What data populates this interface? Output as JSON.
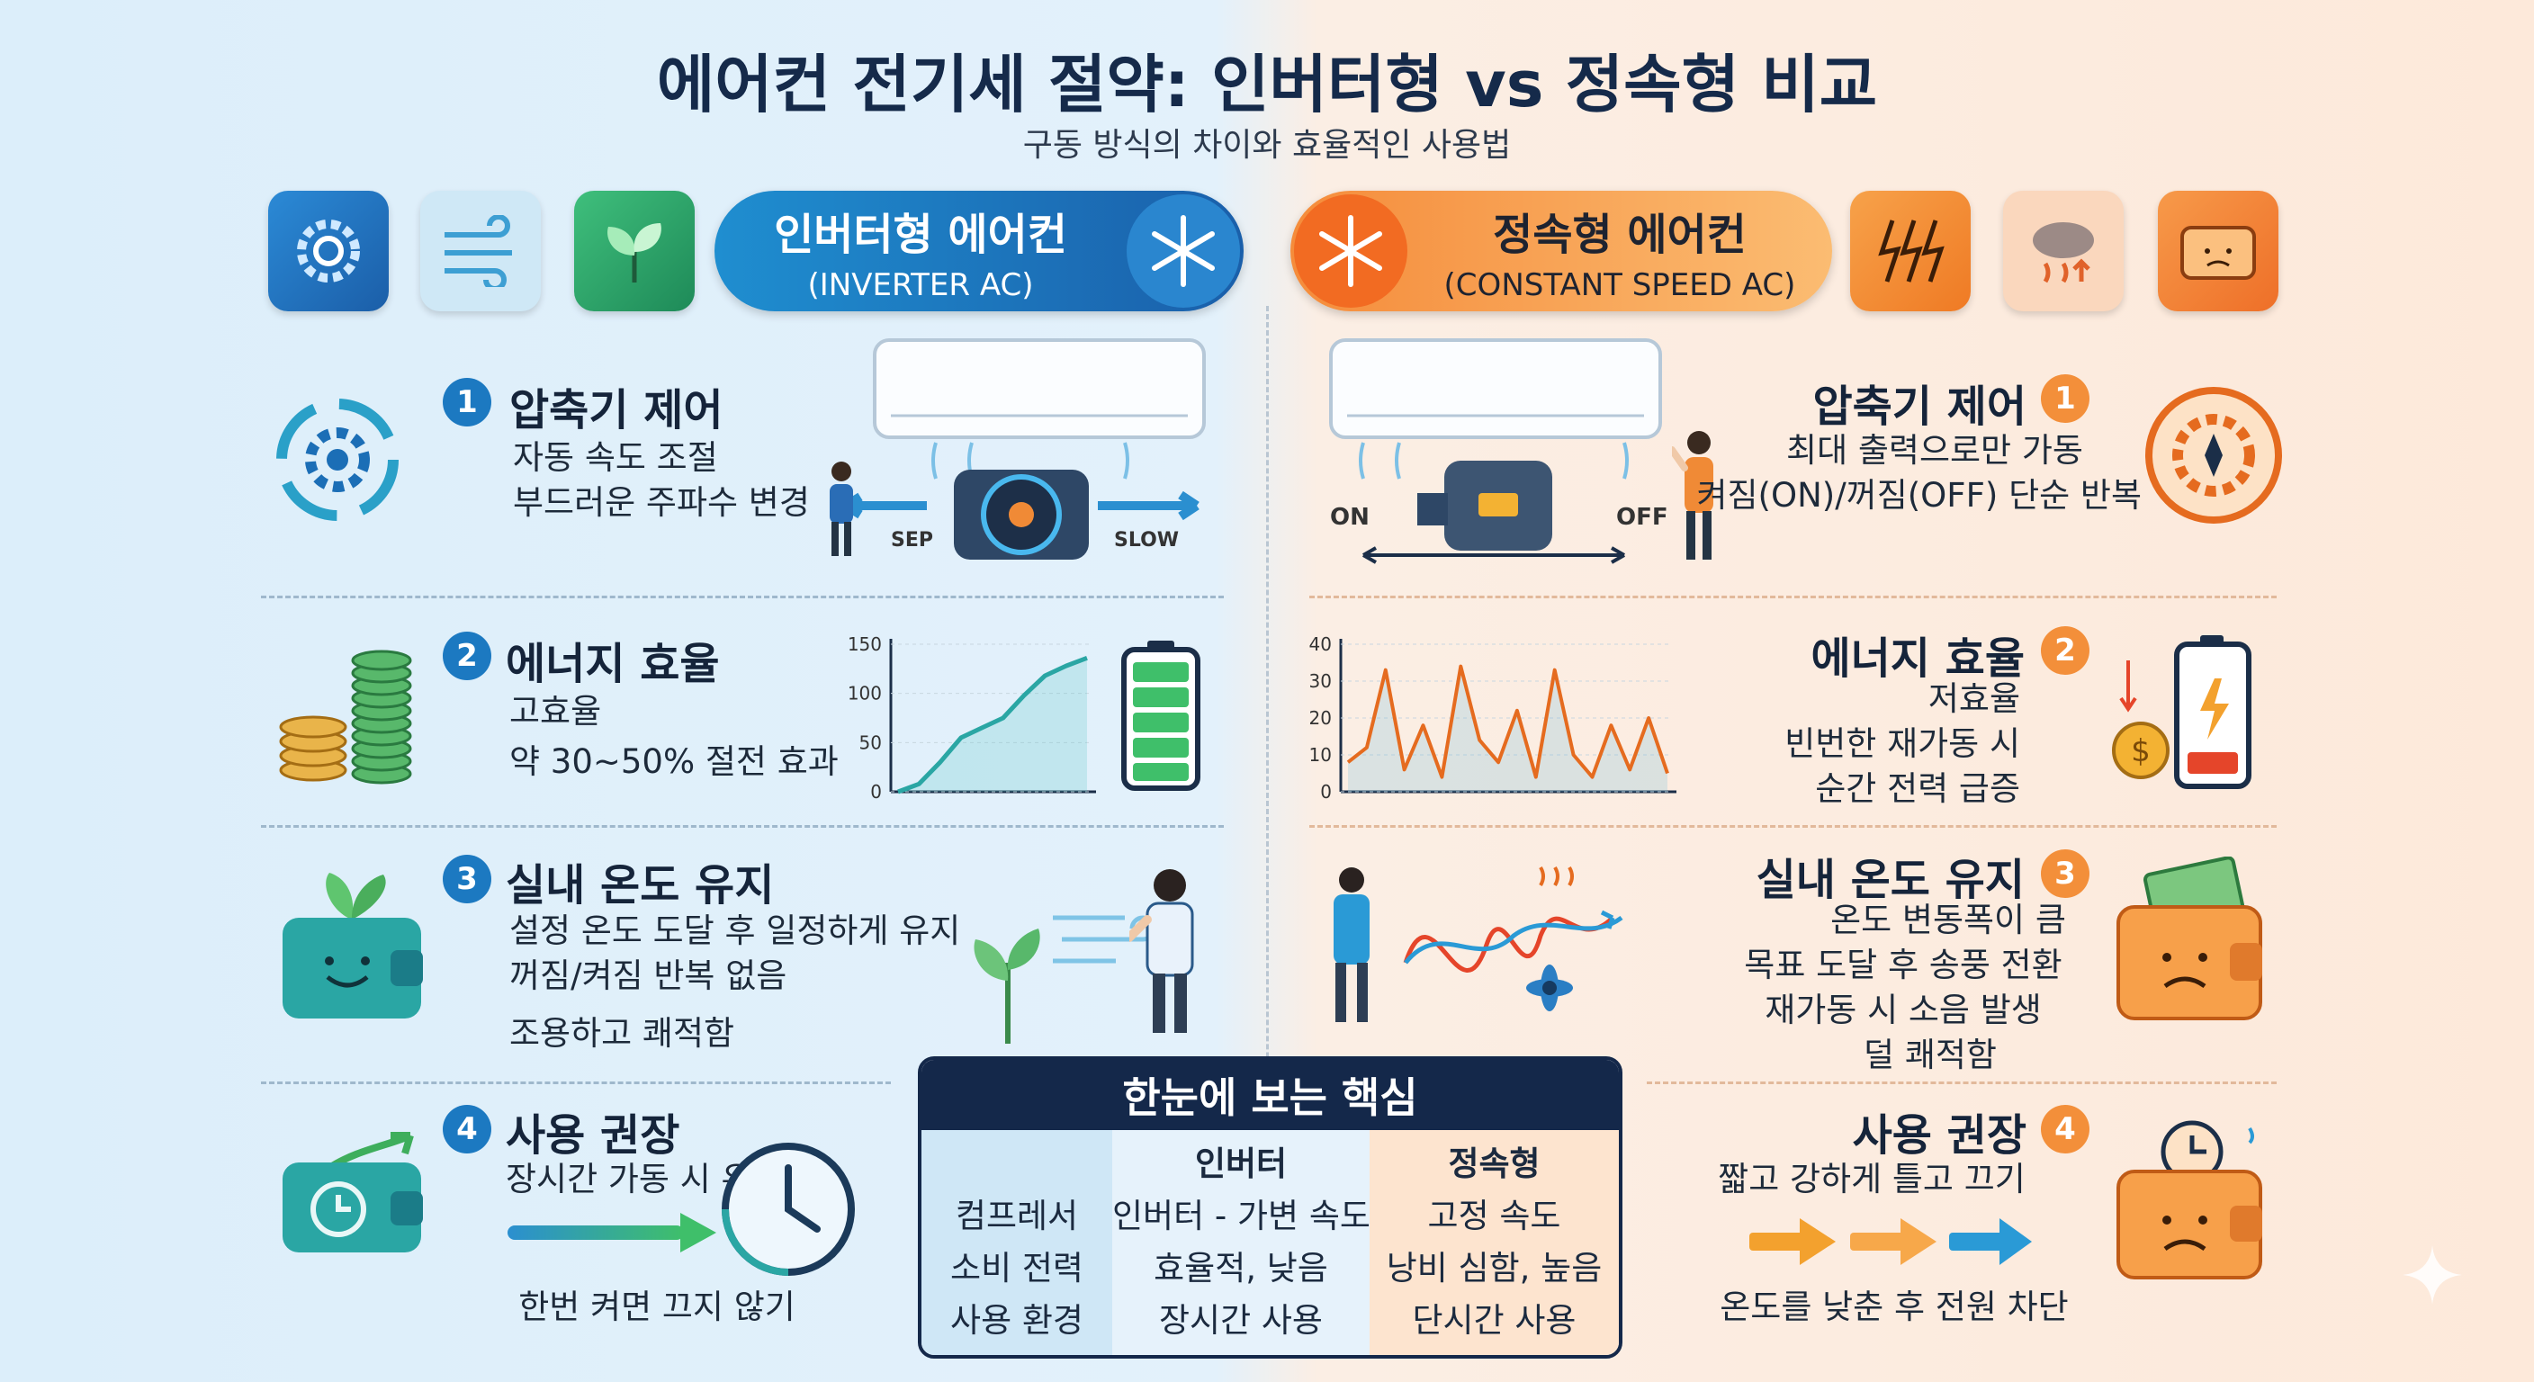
{
  "title": "에어컨 전기세 절약: 인버터형 vs 정속형 비교",
  "subtitle": "구동 방식의 차이와 효율적인 사용법",
  "left": {
    "header_title": "인버터형 에어컨",
    "header_sub": "(INVERTER AC)",
    "sections": [
      {
        "num": "1",
        "title": "압축기 제어",
        "lines": [
          "자동 속도 조절",
          "부드러운 주파수 변경"
        ]
      },
      {
        "num": "2",
        "title": "에너지 효율",
        "lines": [
          "고효율",
          "약 30~50% 절전 효과"
        ]
      },
      {
        "num": "3",
        "title": "실내 온도 유지",
        "lines": [
          "설정 온도 도달 후 일정하게 유지",
          "꺼짐/켜짐 반복 없음",
          "조용하고 쾌적함"
        ]
      },
      {
        "num": "4",
        "title": "사용 권장",
        "lines": [
          "장시간 가동 시 유리",
          "한번 켜면 끄지 않기"
        ]
      }
    ],
    "compressor_labels": {
      "left": "SEP",
      "right": "SLOW"
    }
  },
  "right": {
    "header_title": "정속형 에어컨",
    "header_sub": "(CONSTANT SPEED AC)",
    "sections": [
      {
        "num": "1",
        "title": "압축기 제어",
        "lines": [
          "최대 출력으로만 가동",
          "켜짐(ON)/꺼짐(OFF) 단순 반복"
        ]
      },
      {
        "num": "2",
        "title": "에너지 효율",
        "lines": [
          "저효율",
          "빈번한 재가동 시",
          "순간 전력 급증"
        ]
      },
      {
        "num": "3",
        "title": "실내 온도 유지",
        "lines": [
          "온도 변동폭이 큼",
          "목표 도달 후 송풍 전환",
          "재가동 시 소음 발생",
          "덜 쾌적함"
        ]
      },
      {
        "num": "4",
        "title": "사용 권장",
        "lines": [
          "짧고 강하게 틀고 끄기",
          "온도를 낮춘 후 전원 차단"
        ]
      }
    ],
    "compressor_labels": {
      "left": "ON",
      "right": "OFF"
    }
  },
  "chart_data": [
    {
      "type": "line",
      "y_ticks": [
        "150",
        "100",
        "50",
        "0"
      ],
      "ylim": [
        0,
        150
      ],
      "series": [
        {
          "values": [
            0,
            8,
            30,
            55,
            65,
            75,
            98,
            118,
            128,
            136
          ]
        }
      ]
    },
    {
      "type": "line",
      "y_ticks": [
        "40",
        "30",
        "20",
        "10",
        "0"
      ],
      "ylim": [
        0,
        40
      ],
      "series": [
        {
          "values": [
            8,
            12,
            33,
            6,
            18,
            4,
            34,
            14,
            8,
            22,
            4,
            33,
            10,
            4,
            18,
            6,
            20,
            5
          ]
        }
      ]
    }
  ],
  "summary": {
    "heading": "한눈에 보는 핵심",
    "col_headers": [
      "",
      "인버터",
      "정속형"
    ],
    "rows": [
      [
        "컴프레서",
        "인버터 - 가변 속도",
        "고정 속도"
      ],
      [
        "소비 전력",
        "효율적, 낮음",
        "낭비 심함, 높음"
      ],
      [
        "사용 환경",
        "장시간 사용",
        "단시간 사용"
      ]
    ]
  },
  "colors": {
    "inverter_blue": "#1c79c1",
    "constant_orange": "#f38f3a",
    "navy": "#14284a"
  }
}
